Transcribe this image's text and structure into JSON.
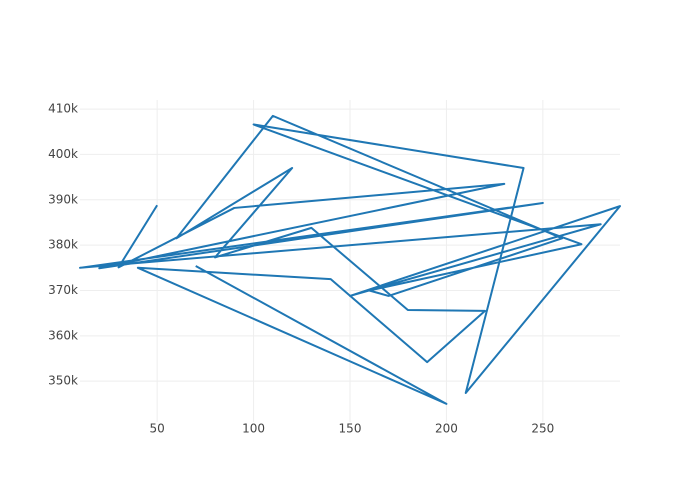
{
  "chart_data": {
    "type": "line",
    "x": [
      50,
      30,
      90,
      230,
      20,
      250,
      10,
      280,
      150,
      290,
      210,
      240,
      100,
      270,
      160,
      170,
      260,
      110,
      60,
      120,
      80,
      130,
      180,
      220,
      190,
      140,
      40,
      200,
      70
    ],
    "series": [
      {
        "color": "#1f77b4",
        "values": [
          388800,
          375100,
          388200,
          393500,
          374900,
          389300,
          375000,
          384600,
          368800,
          388600,
          347400,
          397000,
          406600,
          380200,
          370000,
          368800,
          381500,
          408500,
          381500,
          397000,
          377300,
          383800,
          365700,
          365500,
          354200,
          372500,
          375000,
          345000,
          375400
        ]
      }
    ],
    "xlim": [
      10,
      290
    ],
    "ylim": [
      341000,
      412000
    ],
    "xticks": [
      50,
      100,
      150,
      200,
      250
    ],
    "yticks": [
      {
        "value": 350000,
        "label": "350k"
      },
      {
        "value": 360000,
        "label": "360k"
      },
      {
        "value": 370000,
        "label": "370k"
      },
      {
        "value": 380000,
        "label": "380k"
      },
      {
        "value": 390000,
        "label": "390k"
      },
      {
        "value": 400000,
        "label": "400k"
      },
      {
        "value": 410000,
        "label": "410k"
      }
    ],
    "grid": true
  }
}
